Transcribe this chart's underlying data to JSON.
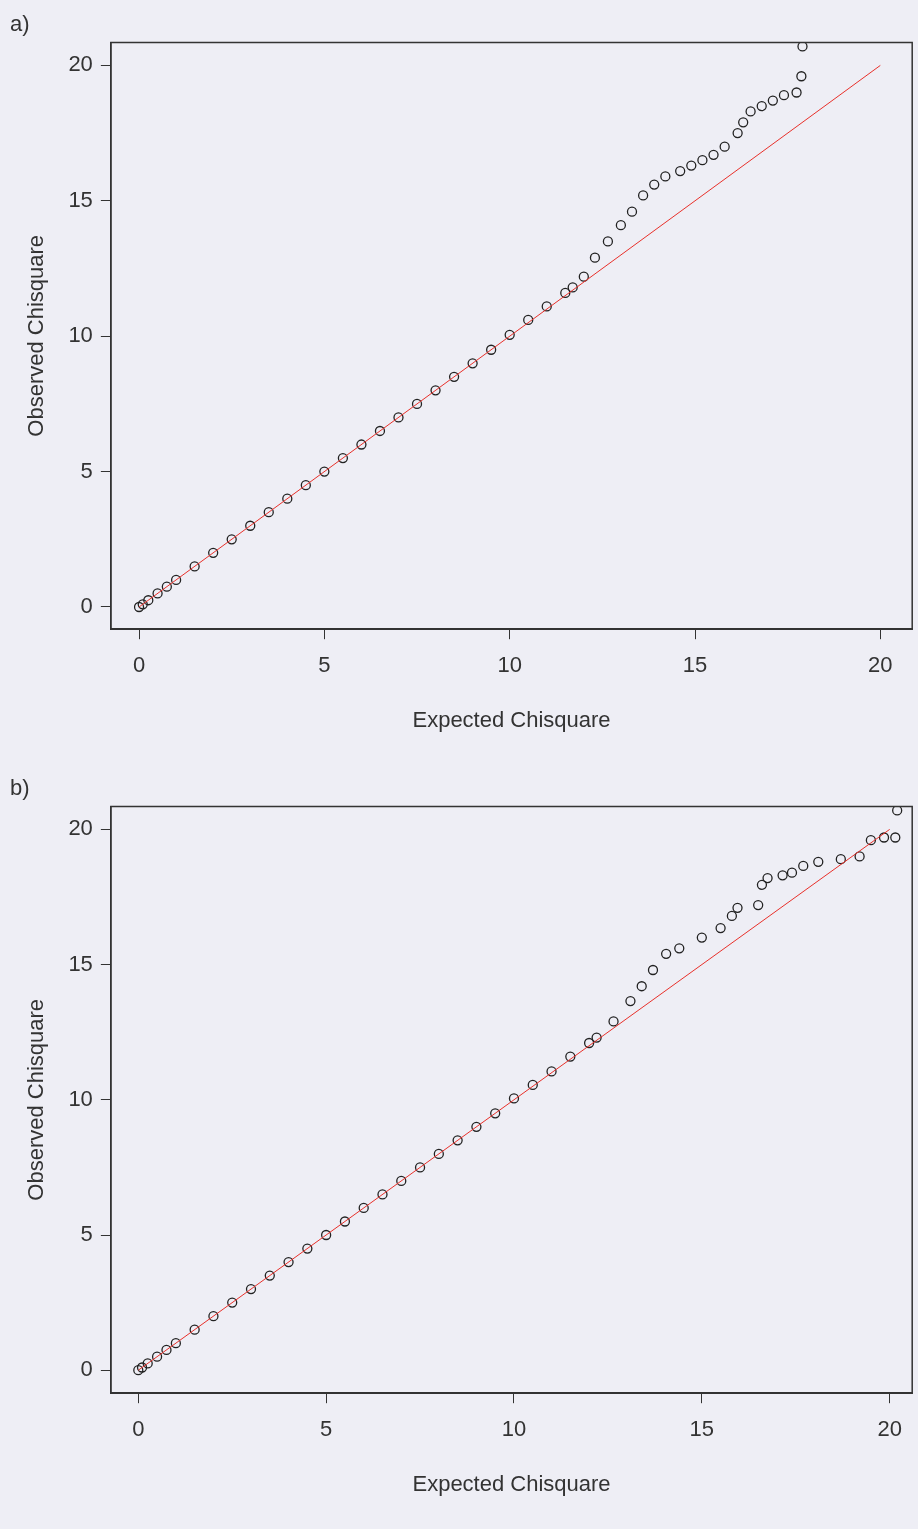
{
  "chart_data": [
    {
      "type": "scatter",
      "title": "a)",
      "xlabel": "Expected Chisquare",
      "ylabel": "Observed Chisquare",
      "xlim": [
        -0.76,
        20.86
      ],
      "ylim": [
        -0.82,
        20.85
      ],
      "xticks": [
        0,
        5,
        10,
        15,
        20
      ],
      "yticks": [
        0,
        5,
        10,
        15,
        20
      ],
      "grid": false,
      "legend": false,
      "marker": "circle",
      "series": [
        {
          "color": "#222222",
          "x": [
            0,
            0.1,
            0.25,
            0.5,
            0.75,
            1,
            1.5,
            2,
            2.5,
            3,
            3.5,
            4,
            4.5,
            5,
            5.5,
            6,
            6.5,
            7,
            7.5,
            8,
            8.5,
            9,
            9.5,
            10,
            10.5,
            11,
            11.5,
            11.7,
            12,
            12.3,
            12.65,
            13,
            13.3,
            13.6,
            13.9,
            14.2,
            14.6,
            14.9,
            15.2,
            15.5,
            15.8,
            16.15,
            16.3,
            16.5,
            16.8,
            17.1,
            17.4,
            17.74,
            17.87,
            17.9
          ],
          "values": [
            0,
            0.1,
            0.25,
            0.5,
            0.75,
            1,
            1.5,
            2,
            2.5,
            3,
            3.5,
            4,
            4.5,
            5,
            5.5,
            6,
            6.5,
            7,
            7.5,
            8,
            8.5,
            9,
            9.5,
            10.05,
            10.6,
            11.1,
            11.6,
            11.8,
            12.2,
            12.9,
            13.5,
            14.1,
            14.6,
            15.2,
            15.6,
            15.9,
            16.1,
            16.3,
            16.5,
            16.7,
            17,
            17.5,
            17.9,
            18.3,
            18.5,
            18.7,
            18.9,
            19,
            19.6,
            20.7
          ]
        },
        {
          "type": "line",
          "marker": "none",
          "color": "#e8302a",
          "x": [
            0,
            20
          ],
          "values": [
            0,
            20
          ]
        }
      ]
    },
    {
      "type": "scatter",
      "title": "b)",
      "xlabel": "Expected Chisquare",
      "ylabel": "Observed Chisquare",
      "xlim": [
        -0.73,
        20.6
      ],
      "ylim": [
        -0.85,
        20.85
      ],
      "xticks": [
        0,
        5,
        10,
        15,
        20
      ],
      "yticks": [
        0,
        5,
        10,
        15,
        20
      ],
      "grid": false,
      "legend": false,
      "marker": "circle",
      "series": [
        {
          "color": "#222222",
          "x": [
            0,
            0.1,
            0.25,
            0.5,
            0.75,
            1,
            1.5,
            2,
            2.5,
            3,
            3.5,
            4,
            4.5,
            5,
            5.5,
            6,
            6.5,
            7,
            7.5,
            8,
            8.5,
            9,
            9.5,
            10,
            10.5,
            11,
            11.5,
            12,
            12.2,
            12.65,
            13.1,
            13.4,
            13.7,
            14.05,
            14.4,
            15,
            15.5,
            15.8,
            15.95,
            16.5,
            16.6,
            16.75,
            17.15,
            17.4,
            17.7,
            18.1,
            18.7,
            19.2,
            19.5,
            19.85,
            20.15,
            20.2
          ],
          "values": [
            0,
            0.1,
            0.25,
            0.5,
            0.75,
            1,
            1.5,
            2,
            2.5,
            3,
            3.5,
            4,
            4.5,
            5,
            5.5,
            6,
            6.5,
            7,
            7.5,
            8,
            8.5,
            9,
            9.5,
            10.05,
            10.55,
            11.05,
            11.6,
            12.1,
            12.3,
            12.9,
            13.65,
            14.2,
            14.8,
            15.4,
            15.6,
            16,
            16.35,
            16.8,
            17.1,
            17.2,
            17.95,
            18.2,
            18.3,
            18.4,
            18.65,
            18.8,
            18.9,
            19,
            19.6,
            19.7,
            19.7,
            20.7
          ]
        },
        {
          "type": "line",
          "marker": "none",
          "color": "#e8302a",
          "x": [
            0,
            20
          ],
          "values": [
            0,
            20
          ]
        }
      ]
    }
  ]
}
